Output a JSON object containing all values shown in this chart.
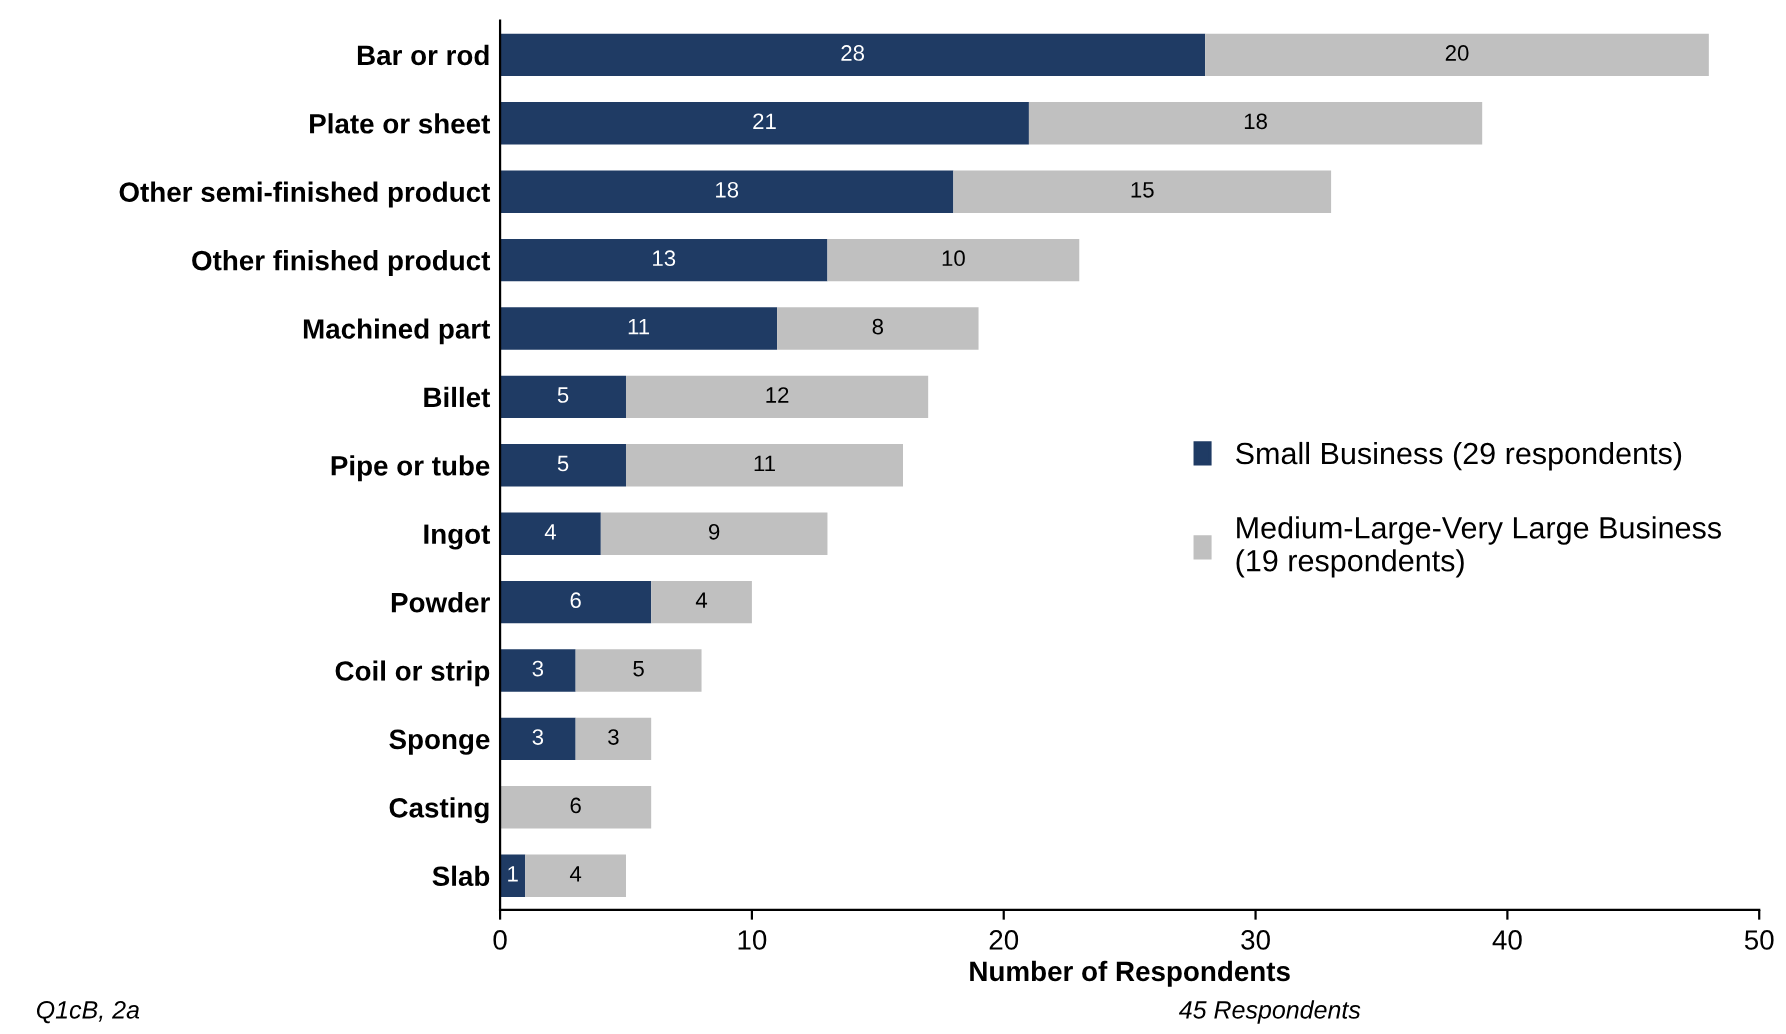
{
  "chart_data": {
    "type": "bar",
    "orientation": "horizontal",
    "stacked": true,
    "categories": [
      "Bar or rod",
      "Plate or sheet",
      "Other semi-finished product",
      "Other finished product",
      "Machined part",
      "Billet",
      "Pipe or tube",
      "Ingot",
      "Powder",
      "Coil or strip",
      "Sponge",
      "Casting",
      "Slab"
    ],
    "series": [
      {
        "name": "Small Business (29 respondents)",
        "color": "#1f3b64",
        "values": [
          28,
          21,
          18,
          13,
          11,
          5,
          5,
          4,
          6,
          3,
          3,
          0,
          1
        ],
        "value_labels": [
          "28",
          "21",
          "18",
          "13",
          "11",
          "5",
          "5",
          "4",
          "6",
          "3",
          "3",
          null,
          "1"
        ]
      },
      {
        "name": "Medium-Large-Very Large Business\n(19 respondents)",
        "color": "#c0c0c0",
        "values": [
          20,
          18,
          15,
          10,
          8,
          12,
          11,
          9,
          4,
          5,
          3,
          6,
          4
        ],
        "value_labels": [
          "20",
          "18",
          "15",
          "10",
          "8",
          "12",
          "11",
          "9",
          "4",
          "5",
          "3",
          "6",
          "4"
        ]
      }
    ],
    "xlabel": "Number of Respondents",
    "xlim": [
      0,
      50
    ],
    "xticks": [
      0,
      10,
      20,
      30,
      40,
      50
    ],
    "legend": "right",
    "grid": false,
    "annotations": [
      "Q1cB, 2a",
      "45 Respondents"
    ]
  }
}
